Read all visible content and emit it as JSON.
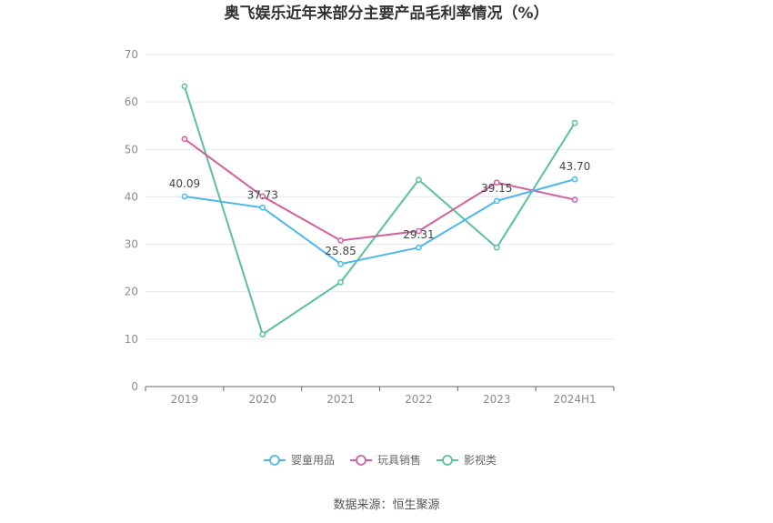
{
  "chart_data": {
    "type": "line",
    "title": "奥飞娱乐近年来部分主要产品毛利率情况（%）",
    "categories": [
      "2019",
      "2020",
      "2021",
      "2022",
      "2023",
      "2024H1"
    ],
    "ylim": [
      0,
      70
    ],
    "yticks": [
      "0",
      "10",
      "20",
      "30",
      "40",
      "50",
      "60",
      "70"
    ],
    "grid": true,
    "legend_position": "bottom",
    "series": [
      {
        "name": "婴童用品",
        "color": "#4db8e8",
        "values": [
          40.09,
          37.73,
          25.85,
          29.31,
          39.15,
          43.7
        ],
        "labels": [
          "40.09",
          "37.73",
          "25.85",
          "29.31",
          "39.15",
          "43.70"
        ]
      },
      {
        "name": "玩具销售",
        "color": "#d0609e",
        "values": [
          52.2,
          40.1,
          30.8,
          32.8,
          43.0,
          39.4
        ]
      },
      {
        "name": "影视类",
        "color": "#5cbf9e",
        "values": [
          63.3,
          11.0,
          22.0,
          43.6,
          29.3,
          55.6
        ]
      }
    ],
    "source": "数据来源：恒生聚源"
  }
}
